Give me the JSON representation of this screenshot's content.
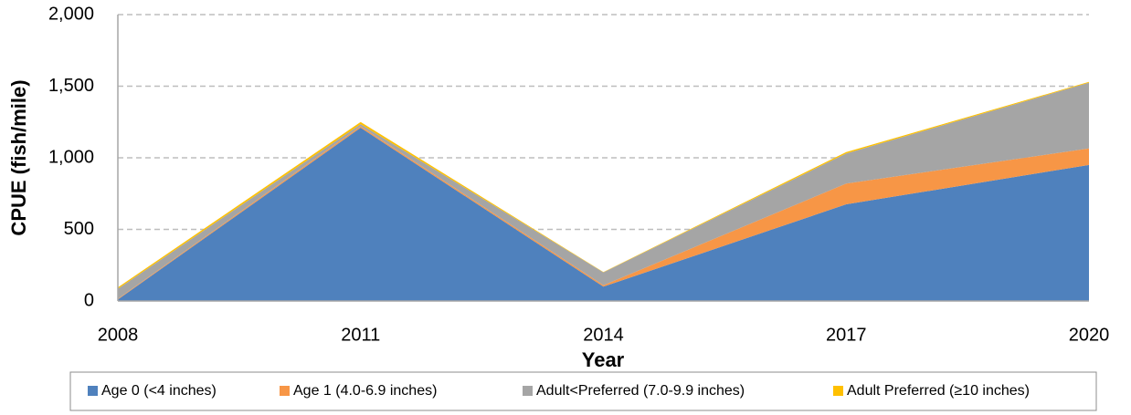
{
  "chart_data": {
    "type": "area",
    "stacked": true,
    "x": [
      2008,
      2011,
      2014,
      2017,
      2020
    ],
    "xlim": [
      2008,
      2020
    ],
    "xticks": [
      2008,
      2011,
      2014,
      2017,
      2020
    ],
    "ylim": [
      0,
      2000
    ],
    "yticks": [
      0,
      500,
      {
        "value": 1000,
        "label": "1,000"
      },
      {
        "value": 1500,
        "label": "1,500"
      },
      {
        "value": 2000,
        "label": "2,000"
      }
    ],
    "grid": true,
    "x_label": "Year",
    "y_label": "CPUE (fish/mile)",
    "legend": "bottom",
    "series": [
      {
        "name": "Age 0 (<4 inches)",
        "color": "#4f81bd",
        "values": [
          10,
          1210,
          100,
          675,
          950
        ]
      },
      {
        "name": "Age 1 (4.0-6.9 inches)",
        "color": "#f79646",
        "values": [
          5,
          10,
          10,
          145,
          115
        ]
      },
      {
        "name": "Adult<Preferred (7.0-9.9 inches)",
        "color": "#a5a5a5",
        "values": [
          70,
          15,
          90,
          210,
          460
        ]
      },
      {
        "name": "Adult Preferred (≥10 inches)",
        "color": "#ffc000",
        "values": [
          10,
          15,
          2,
          10,
          5
        ]
      }
    ]
  }
}
